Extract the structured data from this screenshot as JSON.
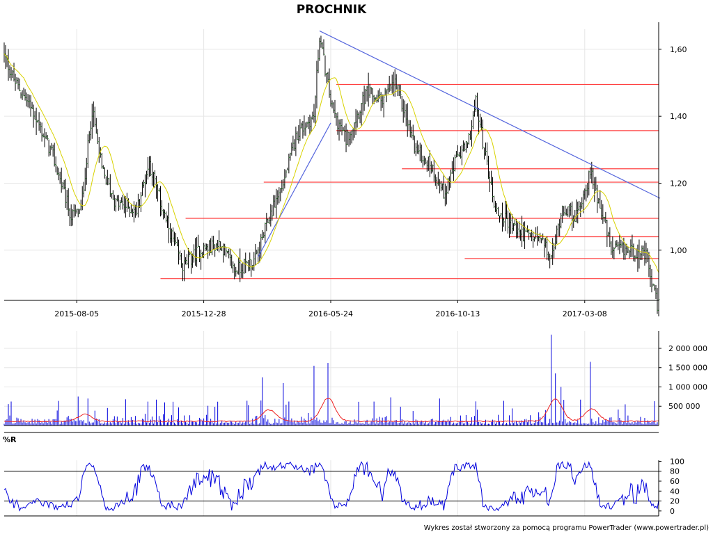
{
  "chart_data": [
    {
      "type": "ohlc",
      "title": "PROCHNIK",
      "x_ticks": [
        "2015-08-05",
        "2015-12-28",
        "2016-05-24",
        "2016-10-13",
        "2017-03-08"
      ],
      "y_ticks": [
        "1,00",
        "1,20",
        "1,40",
        "1,60"
      ],
      "y_tick_values": [
        1.0,
        1.2,
        1.4,
        1.6
      ],
      "ylim": [
        0.85,
        1.66
      ],
      "n_sessions": 470,
      "tick_sessions": [
        52,
        143,
        234,
        325,
        416
      ],
      "ohlc_color": "#000000",
      "ma_color": "#d8d200",
      "support_lines_color": "#ff4040",
      "trend_lines_color": "#5566dd",
      "anchors": [
        [
          0,
          1.58
        ],
        [
          8,
          1.5
        ],
        [
          20,
          1.42
        ],
        [
          35,
          1.28
        ],
        [
          48,
          1.1
        ],
        [
          55,
          1.12
        ],
        [
          63,
          1.42
        ],
        [
          70,
          1.24
        ],
        [
          80,
          1.14
        ],
        [
          95,
          1.12
        ],
        [
          104,
          1.26
        ],
        [
          115,
          1.1
        ],
        [
          128,
          0.95
        ],
        [
          140,
          1.0
        ],
        [
          155,
          1.02
        ],
        [
          165,
          0.94
        ],
        [
          180,
          0.97
        ],
        [
          190,
          1.1
        ],
        [
          200,
          1.2
        ],
        [
          210,
          1.35
        ],
        [
          222,
          1.4
        ],
        [
          226,
          1.64
        ],
        [
          235,
          1.42
        ],
        [
          245,
          1.33
        ],
        [
          260,
          1.47
        ],
        [
          270,
          1.45
        ],
        [
          280,
          1.5
        ],
        [
          295,
          1.3
        ],
        [
          305,
          1.26
        ],
        [
          315,
          1.17
        ],
        [
          325,
          1.28
        ],
        [
          332,
          1.31
        ],
        [
          338,
          1.44
        ],
        [
          345,
          1.28
        ],
        [
          352,
          1.12
        ],
        [
          370,
          1.05
        ],
        [
          385,
          1.03
        ],
        [
          392,
          0.97
        ],
        [
          400,
          1.13
        ],
        [
          410,
          1.1
        ],
        [
          420,
          1.23
        ],
        [
          428,
          1.12
        ],
        [
          435,
          1.0
        ],
        [
          450,
          1.0
        ],
        [
          460,
          0.98
        ],
        [
          464,
          0.9
        ],
        [
          468,
          0.84
        ]
      ],
      "support_levels": [
        {
          "price": 1.495,
          "from": 238
        },
        {
          "price": 1.357,
          "from": 238
        },
        {
          "price": 1.243,
          "from": 285
        },
        {
          "price": 1.203,
          "from": 186
        },
        {
          "price": 1.095,
          "from": 130
        },
        {
          "price": 1.04,
          "from": 362
        },
        {
          "price": 0.975,
          "from": 330
        },
        {
          "price": 0.915,
          "from": 112
        }
      ],
      "trend_lines": [
        {
          "from": [
            226,
            1.655
          ],
          "to": [
            470,
            1.155
          ]
        },
        {
          "from": [
            182,
            0.98
          ],
          "to": [
            234,
            1.38
          ]
        }
      ]
    },
    {
      "type": "bar",
      "name": "volume",
      "y_ticks": [
        "500 000",
        "1 000 000",
        "1 500 000",
        "2 000 000"
      ],
      "y_tick_values": [
        500000,
        1000000,
        1500000,
        2000000
      ],
      "ylim": [
        0,
        2450000
      ],
      "bar_color": "#0000dd",
      "avg_color": "#ee2222",
      "spikes": [
        [
          53,
          750000
        ],
        [
          60,
          700000
        ],
        [
          103,
          620000
        ],
        [
          115,
          600000
        ],
        [
          185,
          1250000
        ],
        [
          200,
          1100000
        ],
        [
          222,
          1550000
        ],
        [
          232,
          1620000
        ],
        [
          277,
          730000
        ],
        [
          312,
          700000
        ],
        [
          358,
          640000
        ],
        [
          392,
          2350000
        ],
        [
          395,
          1350000
        ],
        [
          399,
          1000000
        ],
        [
          420,
          1650000
        ],
        [
          445,
          550000
        ],
        [
          466,
          630000
        ]
      ],
      "avg_bumps": [
        [
          58,
          180000
        ],
        [
          190,
          300000
        ],
        [
          232,
          600000
        ],
        [
          395,
          570000
        ],
        [
          421,
          320000
        ]
      ]
    },
    {
      "type": "line",
      "name": "%R",
      "label": "%R",
      "y_ticks": [
        "0",
        "20",
        "40",
        "60",
        "80",
        "100"
      ],
      "y_tick_values": [
        0,
        20,
        40,
        60,
        80,
        100
      ],
      "ylim": [
        -10,
        102
      ],
      "ref_lines": [
        20,
        80
      ],
      "line_color": "#0000dd"
    }
  ],
  "footer": "Wykres został stworzony za pomocą programu PowerTrader (www.powertrader.pl)"
}
